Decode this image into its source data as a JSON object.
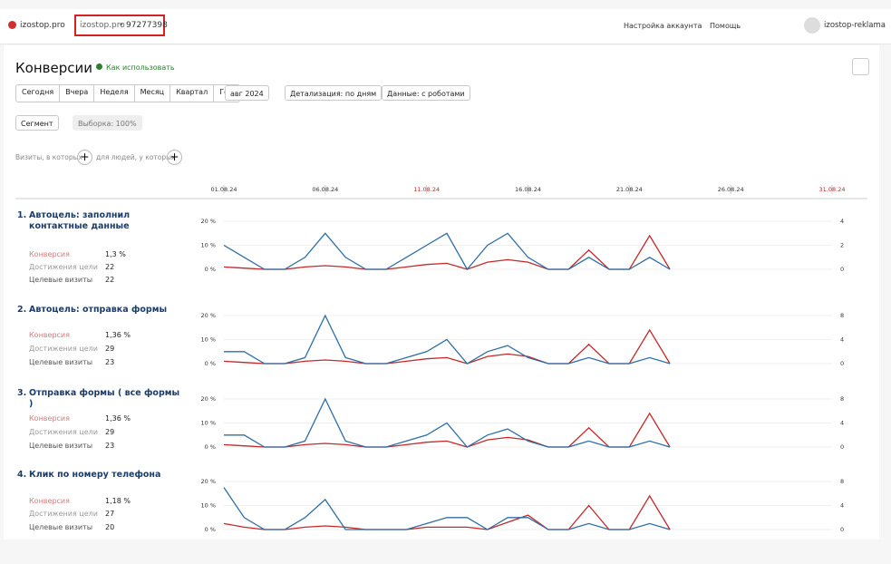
{
  "header": {
    "site": "izostop.pro",
    "counter_site": "izostop.pro",
    "counter_id": "97277398",
    "account_settings": "Настройка аккаунта",
    "help": "Помощь",
    "user": "izostop-reklama"
  },
  "toolbar": {
    "title": "Конверсии",
    "how_to": "Как использовать",
    "periods": [
      "Сегодня",
      "Вчера",
      "Неделя",
      "Месяц",
      "Квартал",
      "Год"
    ],
    "date": "авг 2024",
    "detail": "Детализация: по дням",
    "data": "Данные: с роботами",
    "segment": "Сегмент",
    "sample": "Выборка: 100%",
    "filter_visits": "Визиты, в которых",
    "filter_people": "для людей, у которых"
  },
  "timeline": {
    "categories": [
      "01.08.24",
      null,
      null,
      null,
      null,
      "06.08.24",
      null,
      null,
      null,
      null,
      "11.08.24",
      null,
      null,
      null,
      null,
      "16.08.24",
      null,
      null,
      null,
      null,
      "21.08.24",
      null,
      null,
      null,
      null,
      "26.08.24",
      null,
      null,
      null,
      null,
      "31.08.24"
    ],
    "highlighted": [
      10,
      30
    ],
    "highlight_color": "#c62828"
  },
  "goals": [
    {
      "number": "1.",
      "name": "Автоцель: заполнил контактные данные",
      "metrics": [
        {
          "label": "Конверсия",
          "value": "1,3 %"
        },
        {
          "label": "Достижения цели",
          "value": "22"
        },
        {
          "label": "Целевые визиты",
          "value": "22"
        }
      ]
    },
    {
      "number": "2.",
      "name": "Автоцель: отправка формы",
      "metrics": [
        {
          "label": "Конверсия",
          "value": "1,36 %"
        },
        {
          "label": "Достижения цели",
          "value": "29"
        },
        {
          "label": "Целевые визиты",
          "value": "23"
        }
      ]
    },
    {
      "number": "3.",
      "name": "Отправка формы ( все формы )",
      "metrics": [
        {
          "label": "Конверсия",
          "value": "1,36 %"
        },
        {
          "label": "Достижения цели",
          "value": "29"
        },
        {
          "label": "Целевые визиты",
          "value": "23"
        }
      ]
    },
    {
      "number": "4.",
      "name": "Клик по номеру телефона",
      "metrics": [
        {
          "label": "Конверсия",
          "value": "1,18 %"
        },
        {
          "label": "Достижения цели",
          "value": "27"
        },
        {
          "label": "Целевые визиты",
          "value": "20"
        }
      ]
    }
  ],
  "chart_data": [
    {
      "type": "line",
      "ylim": [
        0,
        20
      ],
      "yticks": [
        {
          "value": 0,
          "label": "0 %"
        },
        {
          "value": 10,
          "label": "10 %"
        },
        {
          "value": 20,
          "label": "20 %"
        }
      ],
      "y2lim": [
        0,
        4
      ],
      "y2ticks": [
        0,
        2,
        4
      ],
      "grid": true,
      "series": [
        {
          "color": "#c62828",
          "values": [
            1,
            0.5,
            0,
            0,
            1,
            1.5,
            1,
            0,
            0,
            1,
            2,
            2.5,
            0,
            3,
            4,
            3,
            0,
            0,
            8,
            0,
            0,
            14,
            0,
            null,
            null,
            null,
            null,
            null,
            null,
            null,
            null
          ]
        },
        {
          "color": "#2e6ea6",
          "axis": "y2",
          "values": [
            2,
            1,
            0,
            0,
            1,
            3,
            1,
            0,
            0,
            1,
            2,
            3,
            0,
            2,
            3,
            1,
            0,
            0,
            1,
            0,
            0,
            1,
            0,
            null,
            null,
            null,
            null,
            null,
            null,
            null,
            null
          ]
        }
      ]
    },
    {
      "type": "line",
      "ylim": [
        0,
        20
      ],
      "yticks": [
        {
          "value": 0,
          "label": "0 %"
        },
        {
          "value": 10,
          "label": "10 %"
        },
        {
          "value": 20,
          "label": "20 %"
        }
      ],
      "y2lim": [
        0,
        8
      ],
      "y2ticks": [
        0,
        4,
        8
      ],
      "grid": true,
      "series": [
        {
          "color": "#c62828",
          "values": [
            1,
            0.5,
            0,
            0,
            1,
            1.5,
            1,
            0,
            0,
            1,
            2,
            2.5,
            0,
            3,
            4,
            3,
            0,
            0,
            8,
            0,
            0,
            14,
            0,
            null,
            null,
            null,
            null,
            null,
            null,
            null,
            null
          ]
        },
        {
          "color": "#2e6ea6",
          "axis": "y2",
          "values": [
            2,
            2,
            0,
            0,
            1,
            8,
            1,
            0,
            0,
            1,
            2,
            4,
            0,
            2,
            3,
            1,
            0,
            0,
            1,
            0,
            0,
            1,
            0,
            null,
            null,
            null,
            null,
            null,
            null,
            null,
            null
          ]
        }
      ]
    },
    {
      "type": "line",
      "ylim": [
        0,
        20
      ],
      "yticks": [
        {
          "value": 0,
          "label": "0 %"
        },
        {
          "value": 10,
          "label": "10 %"
        },
        {
          "value": 20,
          "label": "20 %"
        }
      ],
      "y2lim": [
        0,
        8
      ],
      "y2ticks": [
        0,
        4,
        8
      ],
      "grid": true,
      "series": [
        {
          "color": "#c62828",
          "values": [
            1,
            0.5,
            0,
            0,
            1,
            1.5,
            1,
            0,
            0,
            1,
            2,
            2.5,
            0,
            3,
            4,
            3,
            0,
            0,
            8,
            0,
            0,
            14,
            0,
            null,
            null,
            null,
            null,
            null,
            null,
            null,
            null
          ]
        },
        {
          "color": "#2e6ea6",
          "axis": "y2",
          "values": [
            2,
            2,
            0,
            0,
            1,
            8,
            1,
            0,
            0,
            1,
            2,
            4,
            0,
            2,
            3,
            1,
            0,
            0,
            1,
            0,
            0,
            1,
            0,
            null,
            null,
            null,
            null,
            null,
            null,
            null,
            null
          ]
        }
      ]
    },
    {
      "type": "line",
      "ylim": [
        0,
        20
      ],
      "yticks": [
        {
          "value": 0,
          "label": "0 %"
        },
        {
          "value": 10,
          "label": "10 %"
        },
        {
          "value": 20,
          "label": "20 %"
        }
      ],
      "y2lim": [
        0,
        8
      ],
      "y2ticks": [
        0,
        4,
        8
      ],
      "grid": true,
      "series": [
        {
          "color": "#c62828",
          "values": [
            2.5,
            1,
            0,
            0,
            1,
            1.5,
            1,
            0,
            0,
            0,
            1,
            1,
            1,
            0,
            3,
            6,
            0,
            0,
            10,
            0,
            0,
            14,
            0,
            null,
            null,
            null,
            null,
            null,
            null,
            null,
            null
          ]
        },
        {
          "color": "#2e6ea6",
          "axis": "y2",
          "values": [
            7,
            2,
            0,
            0,
            2,
            5,
            0,
            0,
            0,
            0,
            1,
            2,
            2,
            0,
            2,
            2,
            0,
            0,
            1,
            0,
            0,
            1,
            0,
            null,
            null,
            null,
            null,
            null,
            null,
            null,
            null
          ]
        }
      ]
    }
  ]
}
